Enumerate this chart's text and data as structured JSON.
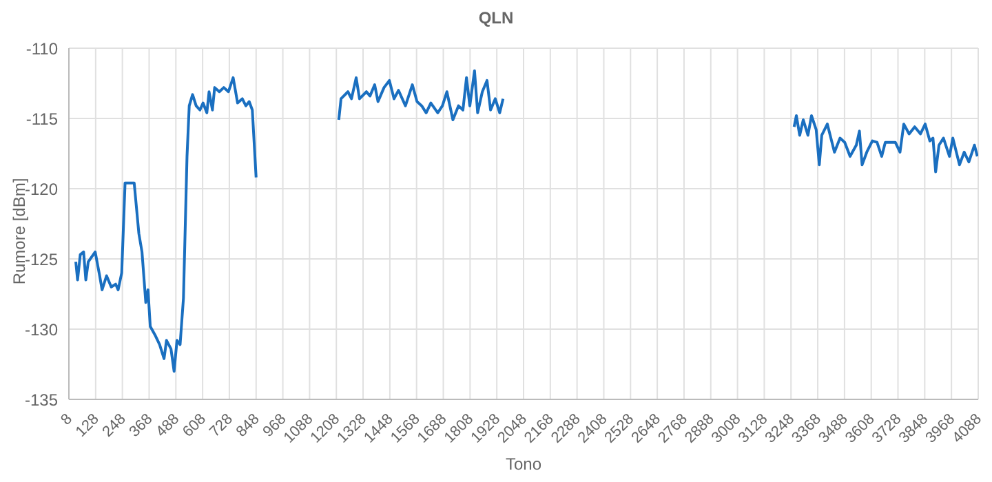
{
  "chart_data": {
    "type": "line",
    "title": "QLN",
    "xlabel": "Tono",
    "ylabel": "Rumore [dBm]",
    "x": [
      39,
      47,
      59,
      74,
      84,
      95,
      126,
      146,
      157,
      177,
      198,
      218,
      229,
      245,
      260,
      301,
      322,
      336,
      353,
      363,
      373,
      394,
      415,
      435,
      446,
      466,
      480,
      493,
      507,
      522,
      538,
      548,
      563,
      579,
      596,
      610,
      627,
      637,
      652,
      662,
      683,
      703,
      724,
      745,
      765,
      786,
      802,
      817,
      831,
      848,
      1000,
      1219,
      1229,
      1260,
      1276,
      1297,
      1312,
      1343,
      1359,
      1380,
      1395,
      1422,
      1446,
      1467,
      1487,
      1518,
      1549,
      1570,
      1591,
      1611,
      1632,
      1663,
      1684,
      1704,
      1731,
      1756,
      1776,
      1792,
      1807,
      1828,
      1842,
      1863,
      1884,
      1900,
      1921,
      1941,
      1956,
      2500,
      3262,
      3272,
      3287,
      3303,
      3324,
      3340,
      3361,
      3375,
      3386,
      3411,
      3443,
      3468,
      3489,
      3513,
      3541,
      3555,
      3567,
      3588,
      3613,
      3634,
      3655,
      3671,
      3716,
      3737,
      3754,
      3778,
      3803,
      3829,
      3850,
      3871,
      3885,
      3897,
      3912,
      3932,
      3959,
      3974,
      4004,
      4025,
      4046,
      4071,
      4084
    ],
    "series": [
      {
        "color": "#1a6fc0",
        "values": [
          -125.2,
          -126.5,
          -124.7,
          -124.5,
          -126.5,
          -125.2,
          -124.5,
          -126.2,
          -127.2,
          -126.2,
          -127,
          -126.8,
          -127.2,
          -126,
          -119.6,
          -119.6,
          -123.2,
          -124.5,
          -128.1,
          -127.2,
          -129.8,
          -130.4,
          -131.1,
          -132.1,
          -130.8,
          -131.4,
          -133,
          -130.8,
          -131.1,
          -127.8,
          -117.7,
          -114.1,
          -113.3,
          -114.1,
          -114.4,
          -113.9,
          -114.6,
          -113.1,
          -114.4,
          -112.8,
          -113.1,
          -112.8,
          -113.1,
          -112.1,
          -113.9,
          -113.6,
          -114.1,
          -113.8,
          -114.4,
          -119.2,
          null,
          -115.1,
          -113.6,
          -113.1,
          -113.6,
          -112.1,
          -113.6,
          -113.1,
          -113.4,
          -112.6,
          -113.8,
          -112.8,
          -112.3,
          -113.6,
          -113,
          -114.1,
          -112.6,
          -113.8,
          -114.1,
          -114.6,
          -113.9,
          -114.6,
          -114.1,
          -113.1,
          -115.1,
          -114.1,
          -114.4,
          -112.1,
          -114.1,
          -111.6,
          -114.6,
          -113.1,
          -112.3,
          -114.4,
          -113.6,
          -114.6,
          -113.6,
          null,
          -115.6,
          -114.8,
          -116.2,
          -115.1,
          -116.2,
          -114.8,
          -115.8,
          -118.3,
          -116.2,
          -115.4,
          -117.4,
          -116.4,
          -116.7,
          -117.7,
          -116.9,
          -115.9,
          -118.3,
          -117.4,
          -116.6,
          -116.7,
          -117.7,
          -116.7,
          -116.7,
          -117.4,
          -115.4,
          -116.1,
          -115.6,
          -116.1,
          -115.4,
          -116.6,
          -116.4,
          -118.8,
          -116.9,
          -116.4,
          -117.7,
          -116.4,
          -118.3,
          -117.4,
          -118.1,
          -116.9,
          -117.7
        ]
      }
    ],
    "xlim": [
      8,
      4088
    ],
    "xticks": [
      8,
      128,
      248,
      368,
      488,
      608,
      728,
      848,
      968,
      1088,
      1208,
      1328,
      1448,
      1568,
      1688,
      1808,
      1928,
      2048,
      2168,
      2288,
      2408,
      2528,
      2648,
      2768,
      2888,
      3008,
      3128,
      3248,
      3368,
      3488,
      3608,
      3728,
      3848,
      3968,
      4088
    ],
    "ylim": [
      -135,
      -110
    ],
    "yticks": [
      -135,
      -130,
      -125,
      -120,
      -115,
      -110
    ],
    "grid": true,
    "legend": false,
    "marker": "none",
    "line_style": "solid"
  }
}
